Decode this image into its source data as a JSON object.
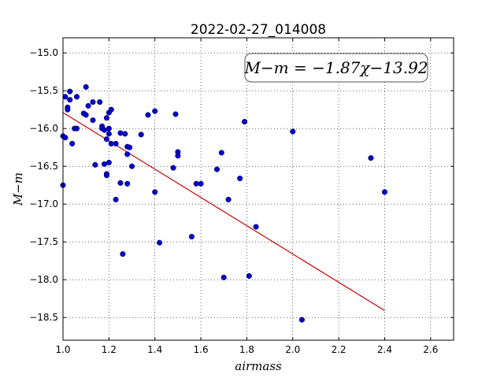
{
  "chart_data": {
    "type": "scatter",
    "title": "2022-02-27_014008",
    "xlabel": "airmass",
    "ylabel": "M−m",
    "xlim": [
      1.0,
      2.7
    ],
    "ylim": [
      -18.8,
      -14.8
    ],
    "y_inverted": true,
    "grid": true,
    "grid_style": "dotted",
    "x_ticks": [
      1.0,
      1.2,
      1.4,
      1.6,
      1.8,
      2.0,
      2.2,
      2.4,
      2.6
    ],
    "x_tick_labels": [
      "1.0",
      "1.2",
      "1.4",
      "1.6",
      "1.8",
      "2.0",
      "2.2",
      "2.4",
      "2.6"
    ],
    "y_ticks": [
      -15.0,
      -15.5,
      -16.0,
      -16.5,
      -17.0,
      -17.5,
      -18.0,
      -18.5
    ],
    "y_tick_labels": [
      "−15.0",
      "−15.5",
      "−16.0",
      "−16.5",
      "−17.0",
      "−17.5",
      "−18.0",
      "−18.5"
    ],
    "annotation": "M−m = −1.87χ−13.92",
    "annotation_position": "top-right",
    "point_color": "#0000cc",
    "fit_color": "#cc0000",
    "fit_line": {
      "slope": -1.87,
      "intercept": -13.92,
      "x_range": [
        1.0,
        2.4
      ]
    },
    "points": [
      [
        1.0,
        -16.1
      ],
      [
        1.0,
        -16.75
      ],
      [
        1.01,
        -16.12
      ],
      [
        1.01,
        -15.58
      ],
      [
        1.02,
        -15.72
      ],
      [
        1.02,
        -15.75
      ],
      [
        1.03,
        -15.51
      ],
      [
        1.03,
        -15.62
      ],
      [
        1.04,
        -16.2
      ],
      [
        1.05,
        -16.0
      ],
      [
        1.06,
        -16.0
      ],
      [
        1.06,
        -15.58
      ],
      [
        1.09,
        -15.8
      ],
      [
        1.1,
        -15.45
      ],
      [
        1.1,
        -15.82
      ],
      [
        1.11,
        -15.7
      ],
      [
        1.13,
        -15.65
      ],
      [
        1.13,
        -15.89
      ],
      [
        1.14,
        -16.48
      ],
      [
        1.16,
        -15.65
      ],
      [
        1.17,
        -15.97
      ],
      [
        1.17,
        -16.0
      ],
      [
        1.18,
        -16.02
      ],
      [
        1.18,
        -16.47
      ],
      [
        1.19,
        -16.6
      ],
      [
        1.19,
        -16.62
      ],
      [
        1.19,
        -16.14
      ],
      [
        1.19,
        -15.86
      ],
      [
        1.2,
        -15.79
      ],
      [
        1.2,
        -16.0
      ],
      [
        1.2,
        -16.07
      ],
      [
        1.2,
        -16.45
      ],
      [
        1.21,
        -15.75
      ],
      [
        1.21,
        -16.2
      ],
      [
        1.23,
        -16.2
      ],
      [
        1.23,
        -16.94
      ],
      [
        1.25,
        -16.06
      ],
      [
        1.25,
        -16.72
      ],
      [
        1.26,
        -17.66
      ],
      [
        1.27,
        -16.07
      ],
      [
        1.28,
        -16.24
      ],
      [
        1.28,
        -16.34
      ],
      [
        1.28,
        -16.73
      ],
      [
        1.29,
        -16.25
      ],
      [
        1.3,
        -16.5
      ],
      [
        1.34,
        -16.08
      ],
      [
        1.37,
        -15.82
      ],
      [
        1.4,
        -15.77
      ],
      [
        1.4,
        -16.84
      ],
      [
        1.42,
        -17.51
      ],
      [
        1.48,
        -16.52
      ],
      [
        1.49,
        -15.81
      ],
      [
        1.5,
        -16.31
      ],
      [
        1.5,
        -16.36
      ],
      [
        1.56,
        -17.43
      ],
      [
        1.58,
        -16.73
      ],
      [
        1.6,
        -16.73
      ],
      [
        1.67,
        -16.54
      ],
      [
        1.69,
        -16.32
      ],
      [
        1.7,
        -17.97
      ],
      [
        1.72,
        -16.94
      ],
      [
        1.77,
        -16.66
      ],
      [
        1.79,
        -15.91
      ],
      [
        1.81,
        -17.95
      ],
      [
        1.84,
        -17.3
      ],
      [
        2.0,
        -16.04
      ],
      [
        2.04,
        -18.53
      ],
      [
        2.34,
        -16.39
      ],
      [
        2.4,
        -16.84
      ]
    ]
  }
}
